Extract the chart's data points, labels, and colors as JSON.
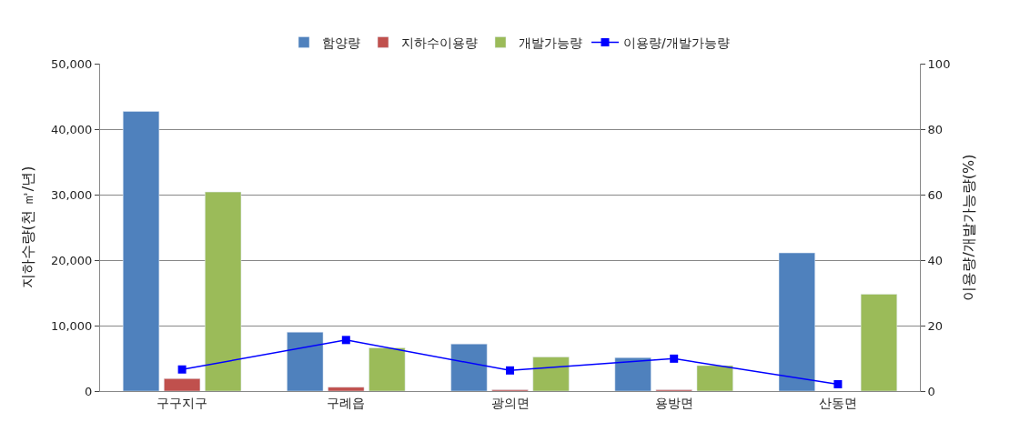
{
  "chart_data": {
    "type": "bar",
    "categories": [
      "구구지구",
      "구례읍",
      "광의면",
      "용방면",
      "산동면"
    ],
    "series": [
      {
        "name": "함양량",
        "color": "#4f81bd",
        "values": [
          42700,
          9000,
          7200,
          5100,
          21100
        ]
      },
      {
        "name": "지하수이용량",
        "color": "#c0504d",
        "values": [
          1900,
          600,
          200,
          200,
          null
        ]
      },
      {
        "name": "개발가능량",
        "color": "#9bbb59",
        "values": [
          30400,
          6600,
          5200,
          3900,
          14800
        ]
      },
      {
        "name": "이용량/개발가능량",
        "color": "#0000ff",
        "type": "line",
        "axis": "y2",
        "marker": "square",
        "values": [
          6.6,
          15.6,
          6.3,
          9.9,
          2.1
        ]
      }
    ],
    "ylabel": "지하수량(천 ㎥/년)",
    "y2label": "이용량/개발가능량(%)",
    "ylim": [
      0,
      50000
    ],
    "yticks": [
      {
        "value": 0,
        "label": "0"
      },
      {
        "value": 10000,
        "label": "10,000"
      },
      {
        "value": 20000,
        "label": "20,000"
      },
      {
        "value": 30000,
        "label": "30,000"
      },
      {
        "value": 40000,
        "label": "40,000"
      },
      {
        "value": 50000,
        "label": "50,000"
      }
    ],
    "y2lim": [
      0,
      100
    ],
    "y2ticks": [
      0,
      20,
      40,
      60,
      80,
      100
    ],
    "grid": "y",
    "legend": "top"
  }
}
